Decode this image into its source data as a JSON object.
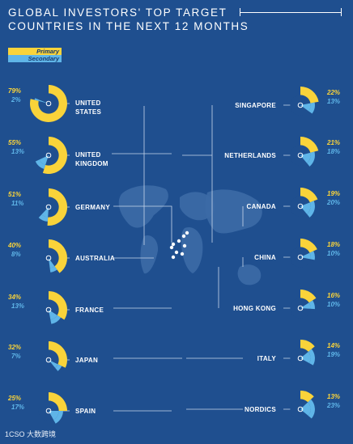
{
  "title": {
    "line1": "GLOBAL INVESTORS' TOP TARGET",
    "line2": "COUNTRIES IN THE NEXT 12 MONTHS"
  },
  "legend": {
    "primary": "Primary",
    "secondary": "Secondary"
  },
  "colors": {
    "background": "#1f4f8f",
    "primary": "#f9d33a",
    "secondary": "#5fb5e8",
    "map": "#3c6aa6",
    "guide": "#c9d6ea"
  },
  "footer": {
    "logo": "1CSO 大数跨境"
  },
  "chart_data": {
    "type": "pie",
    "units": "%",
    "series": [
      {
        "name": "Primary"
      },
      {
        "name": "Secondary"
      }
    ],
    "countries": [
      {
        "name": "UNITED STATES",
        "primary": 79,
        "secondary": 2,
        "primary_label": "79%",
        "secondary_label": "2%"
      },
      {
        "name": "UNITED KINGDOM",
        "primary": 55,
        "secondary": 13,
        "primary_label": "55%",
        "secondary_label": "13%"
      },
      {
        "name": "GERMANY",
        "primary": 51,
        "secondary": 11,
        "primary_label": "51%",
        "secondary_label": "11%"
      },
      {
        "name": "AUSTRALIA",
        "primary": 40,
        "secondary": 8,
        "primary_label": "40%",
        "secondary_label": "8%"
      },
      {
        "name": "FRANCE",
        "primary": 34,
        "secondary": 13,
        "primary_label": "34%",
        "secondary_label": "13%"
      },
      {
        "name": "JAPAN",
        "primary": 32,
        "secondary": 7,
        "primary_label": "32%",
        "secondary_label": "7%"
      },
      {
        "name": "SPAIN",
        "primary": 25,
        "secondary": 17,
        "primary_label": "25%",
        "secondary_label": "17%"
      },
      {
        "name": "SINGAPORE",
        "primary": 22,
        "secondary": 13,
        "primary_label": "22%",
        "secondary_label": "13%"
      },
      {
        "name": "NETHERLANDS",
        "primary": 21,
        "secondary": 18,
        "primary_label": "21%",
        "secondary_label": "18%"
      },
      {
        "name": "CANADA",
        "primary": 19,
        "secondary": 20,
        "primary_label": "19%",
        "secondary_label": "20%"
      },
      {
        "name": "CHINA",
        "primary": 18,
        "secondary": 10,
        "primary_label": "18%",
        "secondary_label": "10%"
      },
      {
        "name": "HONG KONG",
        "primary": 16,
        "secondary": 10,
        "primary_label": "16%",
        "secondary_label": "10%"
      },
      {
        "name": "ITALY",
        "primary": 14,
        "secondary": 19,
        "primary_label": "14%",
        "secondary_label": "19%"
      },
      {
        "name": "NORDICS",
        "primary": 13,
        "secondary": 23,
        "primary_label": "13%",
        "secondary_label": "23%"
      }
    ]
  }
}
